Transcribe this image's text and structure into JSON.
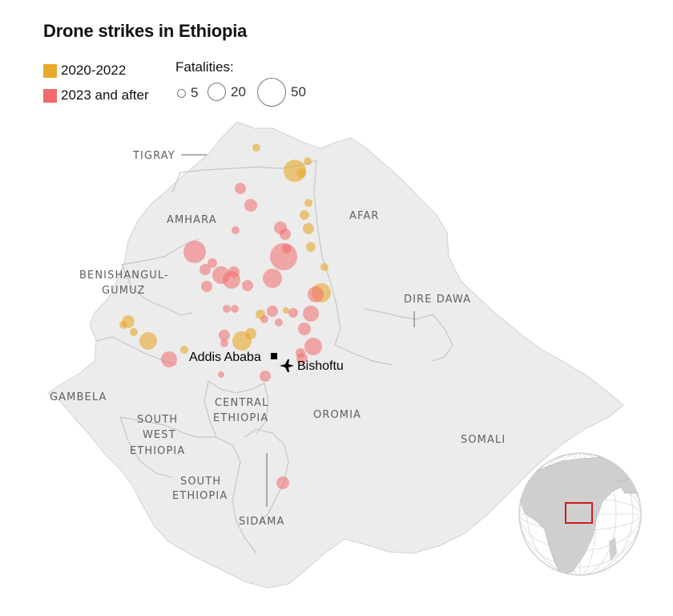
{
  "title": "Drone strikes in Ethiopia",
  "legend": {
    "periods": [
      {
        "label": "2020-2022",
        "color": "#e8a92c"
      },
      {
        "label": "2023 and after",
        "color": "#f26b6b"
      }
    ],
    "fatalities_title": "Fatalities:",
    "fatalities": [
      {
        "label": "5",
        "value": 5
      },
      {
        "label": "20",
        "value": 20
      },
      {
        "label": "50",
        "value": 50
      }
    ]
  },
  "regions": {
    "tigray": "TIGRAY",
    "amhara": "AMHARA",
    "afar": "AFAR",
    "benishangul_1": "BENISHANGUL-",
    "benishangul_2": "GUMUZ",
    "dire_dawa": "DIRE DAWA",
    "gambela": "GAMBELA",
    "central_1": "CENTRAL",
    "central_2": "ETHIOPIA",
    "oromia": "OROMIA",
    "southwest_1": "SOUTH",
    "southwest_2": "WEST",
    "southwest_3": "ETHIOPIA",
    "somali": "SOMALI",
    "south_1": "SOUTH",
    "south_2": "ETHIOPIA",
    "sidama": "SIDAMA"
  },
  "cities": {
    "capital": "Addis Ababa",
    "airbase": "Bishoftu"
  },
  "icons": {
    "capital": "square-marker-icon",
    "airbase": "airplane-icon",
    "locator": "globe-locator-icon"
  },
  "colors": {
    "land": "#ececec",
    "border": "#c9c9c9",
    "early": "#e8a92c",
    "late": "#f26b6b",
    "locator_box": "#cc1f1f"
  }
}
